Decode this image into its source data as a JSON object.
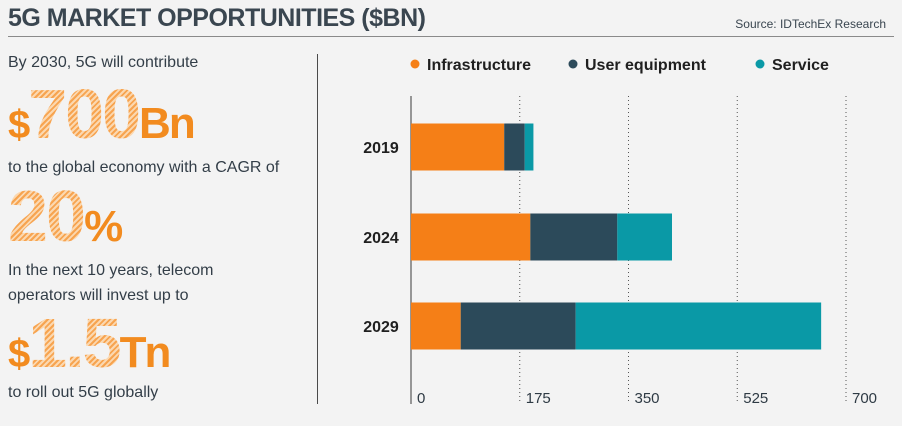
{
  "header": {
    "title": "5G MARKET OPPORTUNITIES ($BN)",
    "source": "Source: IDTechEx Research"
  },
  "facts": {
    "line1": "By 2030, 5G will contribute",
    "stat1_prefix": "$",
    "stat1_value": "700",
    "stat1_suffix": "Bn",
    "line2": "to the global economy with a CAGR of",
    "stat2_value": "20",
    "stat2_suffix": "%",
    "line3": "In the next 10 years, telecom",
    "line4": "operators will invest up to",
    "stat3_prefix": "$",
    "stat3_value": "1.5",
    "stat3_suffix": "Tn",
    "line5": "to roll out 5G globally"
  },
  "colors": {
    "infrastructure": "#f57f17",
    "user_equipment": "#2c4a5a",
    "service": "#0a99a6",
    "accent": "#f28b1f"
  },
  "chart_data": {
    "type": "bar",
    "orientation": "horizontal",
    "stacked": true,
    "categories": [
      "2019",
      "2024",
      "2029"
    ],
    "series": [
      {
        "name": "Infrastructure",
        "values": [
          150,
          192,
          80
        ]
      },
      {
        "name": "User equipment",
        "values": [
          33,
          140,
          185
        ]
      },
      {
        "name": "Service",
        "values": [
          14,
          88,
          395
        ]
      }
    ],
    "xticks": [
      "0",
      "175",
      "350",
      "525",
      "700"
    ],
    "xlim": [
      0,
      700
    ],
    "legend": "top",
    "grid": "vertical dotted"
  }
}
